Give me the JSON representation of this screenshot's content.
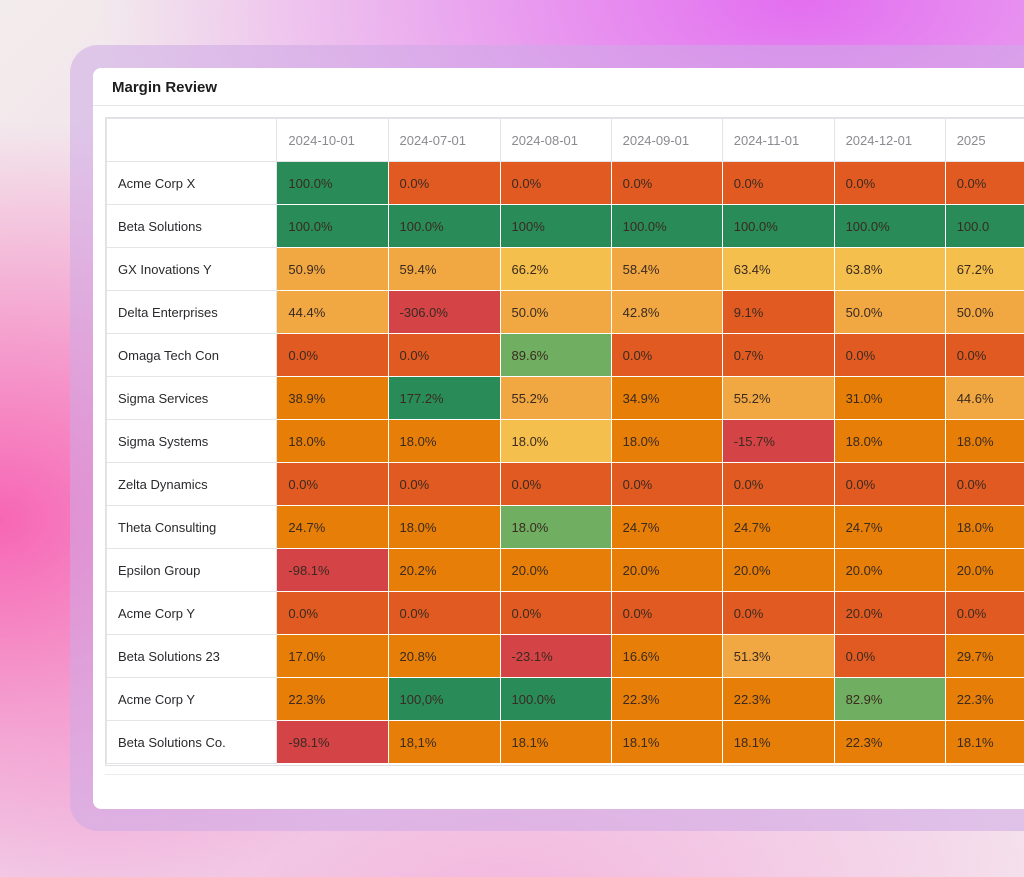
{
  "title": "Margin Review",
  "colors": {
    "dark_green": "#288b58",
    "light_green": "#70af61",
    "red": "#d44346",
    "red_orange": "#e05a22",
    "orange": "#e67e08",
    "light_orange": "#f1a843",
    "yellow": "#f4bf4c"
  },
  "columns": [
    "",
    "2024-10-01",
    "2024-07-01",
    "2024-08-01",
    "2024-09-01",
    "2024-11-01",
    "2024-12-01",
    "2025"
  ],
  "rows": [
    {
      "name": "Acme Corp X",
      "values": [
        "100.0%",
        "0.0%",
        "0.0%",
        "0.0%",
        "0.0%",
        "0.0%",
        "0.0%"
      ],
      "levels": [
        "dark_green",
        "red_orange",
        "red_orange",
        "red_orange",
        "red_orange",
        "red_orange",
        "red_orange"
      ]
    },
    {
      "name": "Beta Solutions",
      "values": [
        "100.0%",
        "100.0%",
        "100%",
        "100.0%",
        "100.0%",
        "100.0%",
        "100.0"
      ],
      "levels": [
        "dark_green",
        "dark_green",
        "dark_green",
        "dark_green",
        "dark_green",
        "dark_green",
        "dark_green"
      ]
    },
    {
      "name": "GX Inovations Y",
      "values": [
        "50.9%",
        "59.4%",
        "66.2%",
        "58.4%",
        "63.4%",
        "63.8%",
        "67.2%"
      ],
      "levels": [
        "light_orange",
        "light_orange",
        "yellow",
        "light_orange",
        "yellow",
        "yellow",
        "yellow"
      ]
    },
    {
      "name": "Delta Enterprises",
      "values": [
        "44.4%",
        "-306.0%",
        "50.0%",
        "42.8%",
        "9.1%",
        "50.0%",
        "50.0%"
      ],
      "levels": [
        "light_orange",
        "red",
        "light_orange",
        "light_orange",
        "red_orange",
        "light_orange",
        "light_orange"
      ]
    },
    {
      "name": "Omaga Tech Con",
      "values": [
        "0.0%",
        "0.0%",
        "89.6%",
        "0.0%",
        "0.7%",
        "0.0%",
        "0.0%"
      ],
      "levels": [
        "red_orange",
        "red_orange",
        "light_green",
        "red_orange",
        "red_orange",
        "red_orange",
        "red_orange"
      ]
    },
    {
      "name": "Sigma Services",
      "values": [
        "38.9%",
        "177.2%",
        "55.2%",
        "34.9%",
        "55.2%",
        "31.0%",
        "44.6%"
      ],
      "levels": [
        "orange",
        "dark_green",
        "light_orange",
        "orange",
        "light_orange",
        "orange",
        "light_orange"
      ]
    },
    {
      "name": "Sigma Systems",
      "values": [
        "18.0%",
        "18.0%",
        "18.0%",
        "18.0%",
        "-15.7%",
        "18.0%",
        "18.0%"
      ],
      "levels": [
        "orange",
        "orange",
        "yellow",
        "orange",
        "red",
        "orange",
        "orange"
      ]
    },
    {
      "name": "Zelta Dynamics",
      "values": [
        "0.0%",
        "0.0%",
        "0.0%",
        "0.0%",
        "0.0%",
        "0.0%",
        "0.0%"
      ],
      "levels": [
        "red_orange",
        "red_orange",
        "red_orange",
        "red_orange",
        "red_orange",
        "red_orange",
        "red_orange"
      ]
    },
    {
      "name": "Theta Consulting",
      "values": [
        "24.7%",
        "18.0%",
        "18.0%",
        "24.7%",
        "24.7%",
        "24.7%",
        "18.0%"
      ],
      "levels": [
        "orange",
        "orange",
        "light_green",
        "orange",
        "orange",
        "orange",
        "orange"
      ]
    },
    {
      "name": "Epsilon Group",
      "values": [
        "-98.1%",
        "20.2%",
        "20.0%",
        "20.0%",
        "20.0%",
        "20.0%",
        "20.0%"
      ],
      "levels": [
        "red",
        "orange",
        "orange",
        "orange",
        "orange",
        "orange",
        "orange"
      ]
    },
    {
      "name": "Acme Corp Y",
      "values": [
        "0.0%",
        "0.0%",
        "0.0%",
        "0.0%",
        "0.0%",
        "20.0%",
        "0.0%"
      ],
      "levels": [
        "red_orange",
        "red_orange",
        "red_orange",
        "red_orange",
        "red_orange",
        "red_orange",
        "red_orange"
      ]
    },
    {
      "name": "Beta Solutions 23",
      "values": [
        "17.0%",
        "20.8%",
        "-23.1%",
        "16.6%",
        "51.3%",
        "0.0%",
        "29.7%"
      ],
      "levels": [
        "orange",
        "orange",
        "red",
        "orange",
        "light_orange",
        "red_orange",
        "orange"
      ]
    },
    {
      "name": "Acme Corp Y",
      "values": [
        "22.3%",
        "100,0%",
        "100.0%",
        "22.3%",
        "22.3%",
        "82.9%",
        "22.3%"
      ],
      "levels": [
        "orange",
        "dark_green",
        "dark_green",
        "orange",
        "orange",
        "light_green",
        "orange"
      ]
    },
    {
      "name": "Beta Solutions Co.",
      "values": [
        "-98.1%",
        "18,1%",
        "18.1%",
        "18.1%",
        "18.1%",
        "22.3%",
        "18.1%"
      ],
      "levels": [
        "red",
        "orange",
        "orange",
        "orange",
        "orange",
        "orange",
        "orange"
      ]
    }
  ]
}
